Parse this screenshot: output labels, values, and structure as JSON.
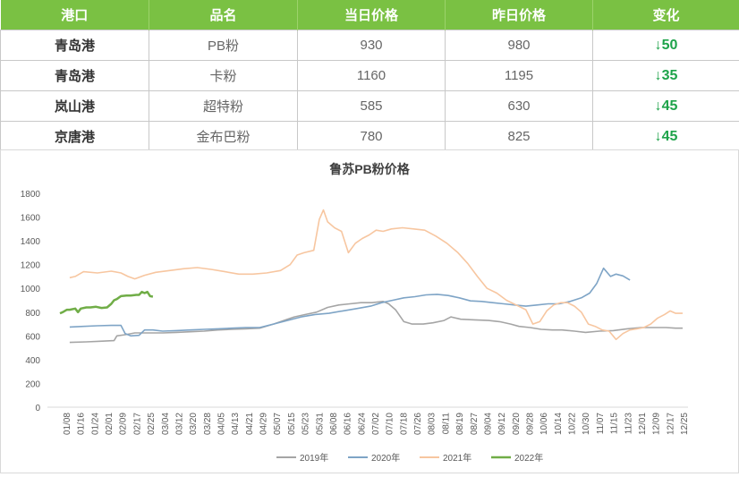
{
  "table": {
    "headers": [
      "港口",
      "品名",
      "当日价格",
      "昨日价格",
      "变化"
    ],
    "rows": [
      {
        "port": "青岛港",
        "product": "PB粉",
        "today": "930",
        "yesterday": "980",
        "change": "↓50"
      },
      {
        "port": "青岛港",
        "product": "卡粉",
        "today": "1160",
        "yesterday": "1195",
        "change": "↓35"
      },
      {
        "port": "岚山港",
        "product": "超特粉",
        "today": "585",
        "yesterday": "630",
        "change": "↓45"
      },
      {
        "port": "京唐港",
        "product": "金布巴粉",
        "today": "780",
        "yesterday": "825",
        "change": "↓45"
      }
    ],
    "colors": {
      "header_bg": "#7ac143",
      "header_text": "#ffffff",
      "change_text": "#1ea34a"
    }
  },
  "chart_data": {
    "type": "line",
    "title": "鲁苏PB粉价格",
    "xlabel": "",
    "ylabel": "",
    "ylim": [
      0,
      1800
    ],
    "yticks": [
      0,
      200,
      400,
      600,
      800,
      1000,
      1200,
      1400,
      1600,
      1800
    ],
    "x_day_range": [
      1,
      365
    ],
    "x_tick_labels": [
      "01/08",
      "01/16",
      "01/24",
      "02/01",
      "02/09",
      "02/17",
      "02/25",
      "03/04",
      "03/12",
      "03/20",
      "03/28",
      "04/05",
      "04/13",
      "04/21",
      "04/29",
      "05/07",
      "05/15",
      "05/23",
      "05/31",
      "06/08",
      "06/16",
      "06/24",
      "07/02",
      "07/10",
      "07/18",
      "07/26",
      "08/03",
      "08/11",
      "08/19",
      "08/27",
      "09/04",
      "09/12",
      "09/20",
      "09/28",
      "10/06",
      "10/14",
      "10/22",
      "10/30",
      "11/07",
      "11/15",
      "11/23",
      "12/01",
      "12/09",
      "12/17",
      "12/25"
    ],
    "grid": false,
    "legend": "bottom",
    "series": [
      {
        "name": "2019年",
        "color": "#a5a5a5",
        "points": [
          [
            8,
            545
          ],
          [
            20,
            550
          ],
          [
            30,
            555
          ],
          [
            40,
            560
          ],
          [
            42,
            600
          ],
          [
            48,
            610
          ],
          [
            55,
            625
          ],
          [
            65,
            625
          ],
          [
            75,
            625
          ],
          [
            85,
            630
          ],
          [
            95,
            635
          ],
          [
            105,
            640
          ],
          [
            115,
            650
          ],
          [
            125,
            655
          ],
          [
            135,
            660
          ],
          [
            145,
            665
          ],
          [
            155,
            700
          ],
          [
            165,
            740
          ],
          [
            170,
            760
          ],
          [
            178,
            780
          ],
          [
            186,
            800
          ],
          [
            194,
            840
          ],
          [
            202,
            860
          ],
          [
            210,
            870
          ],
          [
            218,
            880
          ],
          [
            226,
            880
          ],
          [
            234,
            890
          ],
          [
            238,
            870
          ],
          [
            243,
            820
          ],
          [
            249,
            720
          ],
          [
            255,
            700
          ],
          [
            263,
            700
          ],
          [
            270,
            710
          ],
          [
            278,
            730
          ],
          [
            283,
            760
          ],
          [
            290,
            740
          ],
          [
            300,
            735
          ],
          [
            310,
            730
          ],
          [
            318,
            720
          ],
          [
            326,
            700
          ],
          [
            332,
            680
          ],
          [
            340,
            670
          ],
          [
            348,
            655
          ],
          [
            356,
            650
          ],
          [
            363,
            650
          ],
          [
            372,
            640
          ],
          [
            380,
            630
          ],
          [
            390,
            640
          ],
          [
            400,
            645
          ],
          [
            410,
            660
          ],
          [
            420,
            670
          ],
          [
            430,
            670
          ],
          [
            438,
            670
          ],
          [
            445,
            665
          ],
          [
            450,
            665
          ]
        ]
      },
      {
        "name": "2020年",
        "color": "#7ea4c6",
        "points": [
          [
            8,
            675
          ],
          [
            18,
            680
          ],
          [
            28,
            685
          ],
          [
            38,
            688
          ],
          [
            45,
            688
          ],
          [
            48,
            620
          ],
          [
            52,
            600
          ],
          [
            58,
            605
          ],
          [
            62,
            650
          ],
          [
            68,
            650
          ],
          [
            75,
            640
          ],
          [
            85,
            645
          ],
          [
            95,
            650
          ],
          [
            105,
            655
          ],
          [
            115,
            660
          ],
          [
            125,
            665
          ],
          [
            135,
            670
          ],
          [
            145,
            670
          ],
          [
            155,
            700
          ],
          [
            165,
            730
          ],
          [
            175,
            760
          ],
          [
            185,
            780
          ],
          [
            195,
            790
          ],
          [
            205,
            810
          ],
          [
            215,
            830
          ],
          [
            225,
            850
          ],
          [
            233,
            880
          ],
          [
            241,
            900
          ],
          [
            249,
            920
          ],
          [
            257,
            930
          ],
          [
            265,
            945
          ],
          [
            273,
            950
          ],
          [
            281,
            940
          ],
          [
            289,
            920
          ],
          [
            297,
            895
          ],
          [
            305,
            890
          ],
          [
            313,
            880
          ],
          [
            321,
            870
          ],
          [
            329,
            860
          ],
          [
            337,
            850
          ],
          [
            345,
            860
          ],
          [
            353,
            870
          ],
          [
            361,
            870
          ],
          [
            369,
            890
          ],
          [
            377,
            920
          ],
          [
            383,
            960
          ],
          [
            388,
            1040
          ],
          [
            393,
            1170
          ],
          [
            398,
            1100
          ],
          [
            402,
            1120
          ],
          [
            407,
            1105
          ],
          [
            412,
            1070
          ]
        ]
      },
      {
        "name": "2021年",
        "color": "#f7c6a0",
        "points": [
          [
            8,
            1090
          ],
          [
            12,
            1100
          ],
          [
            18,
            1140
          ],
          [
            28,
            1130
          ],
          [
            38,
            1145
          ],
          [
            45,
            1130
          ],
          [
            50,
            1100
          ],
          [
            55,
            1080
          ],
          [
            62,
            1110
          ],
          [
            70,
            1135
          ],
          [
            80,
            1150
          ],
          [
            90,
            1165
          ],
          [
            100,
            1175
          ],
          [
            110,
            1160
          ],
          [
            120,
            1140
          ],
          [
            130,
            1120
          ],
          [
            140,
            1120
          ],
          [
            150,
            1130
          ],
          [
            160,
            1150
          ],
          [
            167,
            1200
          ],
          [
            172,
            1280
          ],
          [
            177,
            1300
          ],
          [
            184,
            1320
          ],
          [
            188,
            1580
          ],
          [
            191,
            1660
          ],
          [
            194,
            1560
          ],
          [
            199,
            1510
          ],
          [
            204,
            1480
          ],
          [
            209,
            1300
          ],
          [
            214,
            1380
          ],
          [
            219,
            1420
          ],
          [
            224,
            1450
          ],
          [
            229,
            1490
          ],
          [
            234,
            1480
          ],
          [
            240,
            1500
          ],
          [
            248,
            1510
          ],
          [
            256,
            1500
          ],
          [
            264,
            1490
          ],
          [
            272,
            1440
          ],
          [
            280,
            1380
          ],
          [
            288,
            1300
          ],
          [
            295,
            1210
          ],
          [
            302,
            1100
          ],
          [
            309,
            1000
          ],
          [
            316,
            960
          ],
          [
            323,
            900
          ],
          [
            330,
            860
          ],
          [
            337,
            820
          ],
          [
            342,
            700
          ],
          [
            347,
            720
          ],
          [
            352,
            810
          ],
          [
            357,
            860
          ],
          [
            362,
            880
          ],
          [
            367,
            880
          ],
          [
            372,
            850
          ],
          [
            377,
            800
          ],
          [
            382,
            700
          ],
          [
            387,
            680
          ],
          [
            392,
            650
          ],
          [
            397,
            640
          ],
          [
            402,
            570
          ],
          [
            407,
            620
          ],
          [
            412,
            650
          ],
          [
            417,
            660
          ],
          [
            422,
            670
          ],
          [
            427,
            700
          ],
          [
            432,
            750
          ],
          [
            437,
            780
          ],
          [
            441,
            810
          ],
          [
            445,
            790
          ],
          [
            450,
            790
          ]
        ]
      },
      {
        "name": "2022年",
        "color": "#70ad47",
        "points": [
          [
            1,
            790
          ],
          [
            3,
            800
          ],
          [
            6,
            820
          ],
          [
            8,
            820
          ],
          [
            12,
            830
          ],
          [
            14,
            800
          ],
          [
            16,
            830
          ],
          [
            20,
            840
          ],
          [
            23,
            840
          ],
          [
            27,
            845
          ],
          [
            31,
            835
          ],
          [
            35,
            840
          ],
          [
            38,
            870
          ],
          [
            40,
            900
          ],
          [
            42,
            910
          ],
          [
            45,
            935
          ],
          [
            49,
            940
          ],
          [
            52,
            940
          ],
          [
            56,
            945
          ],
          [
            58,
            945
          ],
          [
            60,
            970
          ],
          [
            62,
            960
          ],
          [
            64,
            970
          ],
          [
            66,
            935
          ],
          [
            68,
            930
          ]
        ]
      }
    ]
  }
}
